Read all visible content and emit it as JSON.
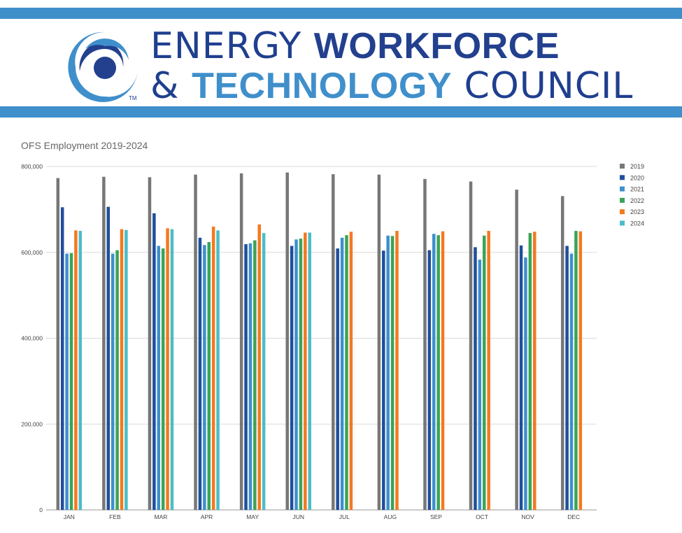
{
  "header": {
    "line1_thin": "ENERGY ",
    "line1_bold": "WORKFORCE",
    "line2_amp": "& ",
    "line2_bold": "TECHNOLOGY",
    "line2_thin": " COUNCIL",
    "trademark": "TM",
    "colors": {
      "stripe": "#3f8fcb",
      "navy": "#23408f",
      "light_blue": "#3f8fcb"
    },
    "logo_icon": "swirl-logo-icon"
  },
  "chart_data": {
    "type": "bar",
    "title": "OFS Employment 2019-2024",
    "xlabel": "",
    "ylabel": "",
    "ylim": [
      0,
      800000
    ],
    "y_ticks": [
      0,
      200000,
      400000,
      600000,
      800000
    ],
    "y_tick_labels": [
      "0",
      "200,000",
      "400,000",
      "600,000",
      "800,000"
    ],
    "grid": true,
    "legend_position": "right",
    "categories": [
      "JAN",
      "FEB",
      "MAR",
      "APR",
      "MAY",
      "JUN",
      "JUL",
      "AUG",
      "SEP",
      "OCT",
      "NOV",
      "DEC"
    ],
    "series": [
      {
        "name": "2019",
        "color": "#777777",
        "values": [
          773000,
          776000,
          775000,
          781000,
          784000,
          786000,
          782000,
          781000,
          771000,
          765000,
          746000,
          731000
        ]
      },
      {
        "name": "2020",
        "color": "#1f4e9c",
        "values": [
          705000,
          706000,
          691000,
          634000,
          619000,
          615000,
          609000,
          604000,
          605000,
          612000,
          616000,
          615000
        ]
      },
      {
        "name": "2021",
        "color": "#3e8fcd",
        "values": [
          597000,
          597000,
          615000,
          617000,
          621000,
          630000,
          634000,
          639000,
          643000,
          583000,
          588000,
          597000
        ]
      },
      {
        "name": "2022",
        "color": "#3aa457",
        "values": [
          598000,
          605000,
          609000,
          624000,
          628000,
          632000,
          640000,
          638000,
          640000,
          639000,
          645000,
          650000
        ]
      },
      {
        "name": "2023",
        "color": "#f47920",
        "values": [
          651000,
          654000,
          656000,
          660000,
          665000,
          646000,
          648000,
          650000,
          649000,
          650000,
          648000,
          649000
        ]
      },
      {
        "name": "2024",
        "color": "#4bbdc8",
        "values": [
          650000,
          652000,
          654000,
          651000,
          645000,
          646000,
          null,
          null,
          null,
          null,
          null,
          null
        ]
      }
    ]
  }
}
